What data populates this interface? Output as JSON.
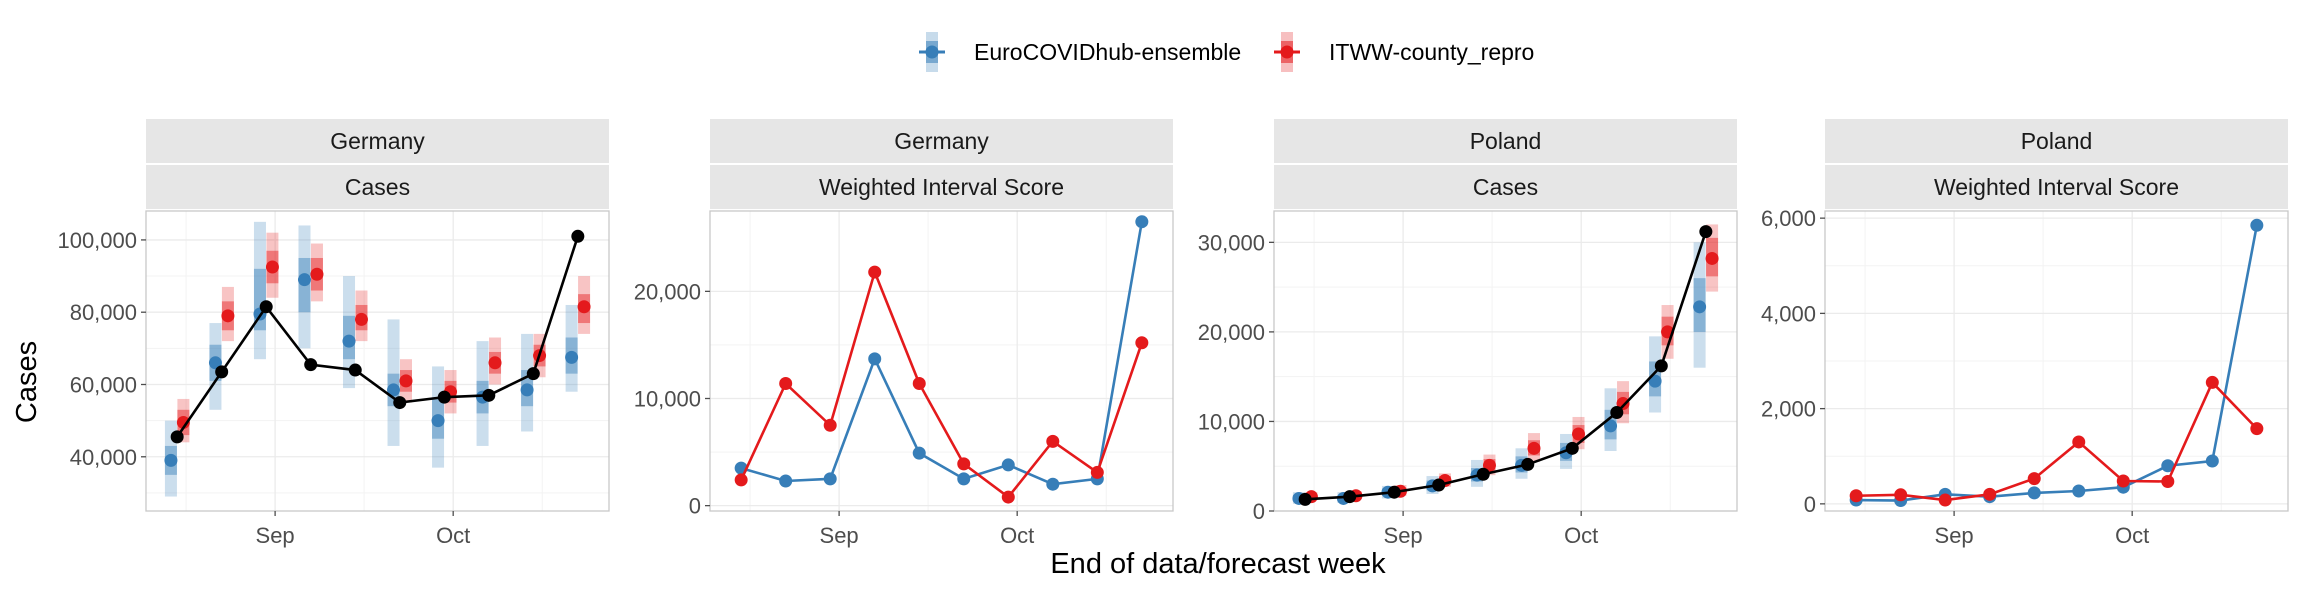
{
  "colors": {
    "ensemble": "#377eb8",
    "repro": "#e41a1c",
    "observed": "#000000",
    "strip": "#e6e6e6",
    "grid": "#ebebeb"
  },
  "legend": [
    {
      "name": "EuroCOVIDhub-ensemble",
      "color_key": "ensemble"
    },
    {
      "name": "ITWW-county_repro",
      "color_key": "repro"
    }
  ],
  "chart_data": {
    "type": "line",
    "xlabel": "End of data/forecast week",
    "ylabel": "Cases",
    "x_tick_labels": [
      "Sep",
      "Oct"
    ],
    "legend_position": "top",
    "grid": true,
    "panels": [
      {
        "location": "Germany",
        "measure": "Cases",
        "kind": "forecast",
        "ylim": [
          25000,
          108000
        ],
        "y_ticks": [
          40000,
          60000,
          80000,
          100000
        ],
        "y_tick_labels": [
          "40,000",
          "60,000",
          "80,000",
          "100,000"
        ],
        "weeks": [
          "2021-08-21",
          "2021-08-28",
          "2021-09-04",
          "2021-09-11",
          "2021-09-18",
          "2021-09-25",
          "2021-10-02",
          "2021-10-09",
          "2021-10-16",
          "2021-10-23"
        ],
        "observed": [
          45500,
          63500,
          81500,
          65500,
          64000,
          55000,
          56500,
          57000,
          63000,
          101000
        ],
        "series": [
          {
            "name": "EuroCOVIDhub-ensemble",
            "median": [
              39000,
              66000,
              79500,
              89000,
              72000,
              58500,
              50000,
              56500,
              58500,
              67500
            ],
            "inner": [
              [
                35000,
                43000
              ],
              [
                61000,
                71000
              ],
              [
                75000,
                92000
              ],
              [
                80000,
                95000
              ],
              [
                67000,
                79000
              ],
              [
                54000,
                63000
              ],
              [
                45000,
                56000
              ],
              [
                52000,
                61000
              ],
              [
                54000,
                64000
              ],
              [
                63000,
                73000
              ]
            ],
            "outer": [
              [
                29000,
                50000
              ],
              [
                53000,
                77000
              ],
              [
                67000,
                105000
              ],
              [
                70000,
                104000
              ],
              [
                59000,
                90000
              ],
              [
                43000,
                78000
              ],
              [
                37000,
                65000
              ],
              [
                43000,
                72000
              ],
              [
                47000,
                74000
              ],
              [
                58000,
                82000
              ]
            ]
          },
          {
            "name": "ITWW-county_repro",
            "median": [
              49500,
              79000,
              92500,
              90500,
              78000,
              61000,
              58000,
              66000,
              68000,
              81500
            ],
            "inner": [
              [
                46000,
                53000
              ],
              [
                75000,
                83000
              ],
              [
                88000,
                97000
              ],
              [
                86000,
                95000
              ],
              [
                75000,
                82000
              ],
              [
                58000,
                64000
              ],
              [
                55000,
                61000
              ],
              [
                63000,
                69000
              ],
              [
                65000,
                71000
              ],
              [
                77000,
                85000
              ]
            ],
            "outer": [
              [
                44000,
                56000
              ],
              [
                72000,
                87000
              ],
              [
                84000,
                102000
              ],
              [
                83000,
                99000
              ],
              [
                72000,
                86000
              ],
              [
                55000,
                67000
              ],
              [
                52000,
                64000
              ],
              [
                60000,
                73000
              ],
              [
                62000,
                74000
              ],
              [
                74000,
                90000
              ]
            ]
          }
        ]
      },
      {
        "location": "Germany",
        "measure": "Weighted Interval Score",
        "kind": "score",
        "ylim": [
          -500,
          27500
        ],
        "y_ticks": [
          0,
          10000,
          20000
        ],
        "y_tick_labels": [
          "0",
          "10,000",
          "20,000"
        ],
        "weeks": [
          "2021-08-21",
          "2021-08-28",
          "2021-09-04",
          "2021-09-11",
          "2021-09-18",
          "2021-09-25",
          "2021-10-02",
          "2021-10-09",
          "2021-10-16",
          "2021-10-23"
        ],
        "series": [
          {
            "name": "EuroCOVIDhub-ensemble",
            "values": [
              3500,
              2300,
              2500,
              13700,
              4900,
              2500,
              3800,
              2000,
              2500,
              26500
            ]
          },
          {
            "name": "ITWW-county_repro",
            "values": [
              2400,
              11400,
              7500,
              21800,
              11400,
              3900,
              800,
              6000,
              3100,
              15200
            ]
          }
        ]
      },
      {
        "location": "Poland",
        "measure": "Cases",
        "kind": "forecast",
        "ylim": [
          0,
          33500
        ],
        "y_ticks": [
          0,
          10000,
          20000,
          30000
        ],
        "y_tick_labels": [
          "0",
          "10,000",
          "20,000",
          "30,000"
        ],
        "weeks": [
          "2021-08-21",
          "2021-08-28",
          "2021-09-04",
          "2021-09-11",
          "2021-09-18",
          "2021-09-25",
          "2021-10-02",
          "2021-10-09",
          "2021-10-16",
          "2021-10-23"
        ],
        "observed": [
          1300,
          1600,
          2100,
          2900,
          4100,
          5200,
          7000,
          11000,
          16200,
          31200
        ],
        "series": [
          {
            "name": "EuroCOVIDhub-ensemble",
            "median": [
              1400,
              1400,
              2100,
              2800,
              4000,
              5100,
              6500,
              9500,
              14500,
              22800
            ],
            "inner": [
              [
                1100,
                1800
              ],
              [
                1100,
                1800
              ],
              [
                1700,
                2500
              ],
              [
                2300,
                3400
              ],
              [
                3300,
                4800
              ],
              [
                4300,
                6100
              ],
              [
                5600,
                7600
              ],
              [
                8000,
                11300
              ],
              [
                12800,
                16700
              ],
              [
                20000,
                26000
              ]
            ],
            "outer": [
              [
                800,
                2100
              ],
              [
                900,
                2100
              ],
              [
                1400,
                2800
              ],
              [
                1900,
                3900
              ],
              [
                2700,
                5700
              ],
              [
                3600,
                7000
              ],
              [
                4700,
                8600
              ],
              [
                6700,
                13700
              ],
              [
                11000,
                19500
              ],
              [
                16000,
                30000
              ]
            ]
          },
          {
            "name": "ITWW-county_repro",
            "median": [
              1600,
              1700,
              2200,
              3400,
              5100,
              7000,
              8600,
              12000,
              20000,
              28200
            ],
            "inner": [
              [
                1400,
                1900
              ],
              [
                1500,
                2000
              ],
              [
                1900,
                2600
              ],
              [
                3000,
                3900
              ],
              [
                4500,
                5800
              ],
              [
                6200,
                7900
              ],
              [
                7600,
                9600
              ],
              [
                10800,
                13300
              ],
              [
                18500,
                21700
              ],
              [
                26200,
                30500
              ]
            ],
            "outer": [
              [
                1200,
                2100
              ],
              [
                1300,
                2200
              ],
              [
                1700,
                2900
              ],
              [
                2700,
                4200
              ],
              [
                4000,
                6300
              ],
              [
                5500,
                8700
              ],
              [
                6900,
                10500
              ],
              [
                9800,
                14500
              ],
              [
                17000,
                23000
              ],
              [
                24500,
                32000
              ]
            ]
          }
        ]
      },
      {
        "location": "Poland",
        "measure": "Weighted Interval Score",
        "kind": "score",
        "ylim": [
          -150,
          6150
        ],
        "y_ticks": [
          0,
          2000,
          4000,
          6000
        ],
        "y_tick_labels": [
          "0",
          "2,000",
          "4,000",
          "6,000"
        ],
        "weeks": [
          "2021-08-21",
          "2021-08-28",
          "2021-09-04",
          "2021-09-11",
          "2021-09-18",
          "2021-09-25",
          "2021-10-02",
          "2021-10-09",
          "2021-10-16",
          "2021-10-23"
        ],
        "series": [
          {
            "name": "EuroCOVIDhub-ensemble",
            "values": [
              80,
              70,
              200,
              150,
              230,
              270,
              350,
              800,
              900,
              5850
            ]
          },
          {
            "name": "ITWW-county_repro",
            "values": [
              170,
              190,
              80,
              200,
              530,
              1300,
              480,
              470,
              2550,
              1580
            ]
          }
        ]
      }
    ]
  }
}
